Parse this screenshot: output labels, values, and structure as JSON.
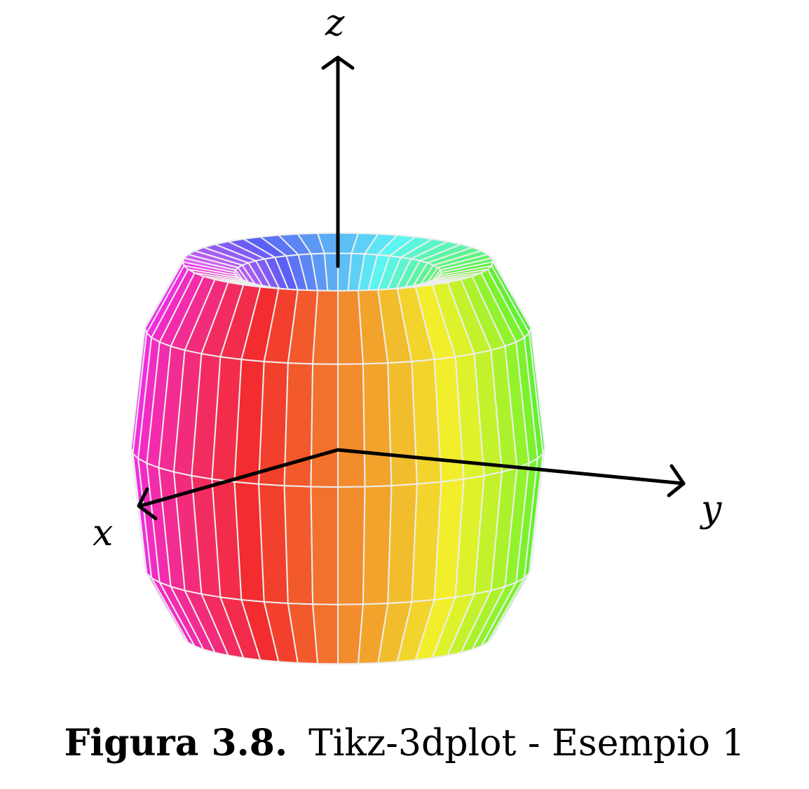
{
  "axes": {
    "x": "x",
    "y": "y",
    "z": "z"
  },
  "caption": {
    "label": "Figura 3.8.",
    "text": "Tikz-3dplot - Esempio 1"
  }
}
